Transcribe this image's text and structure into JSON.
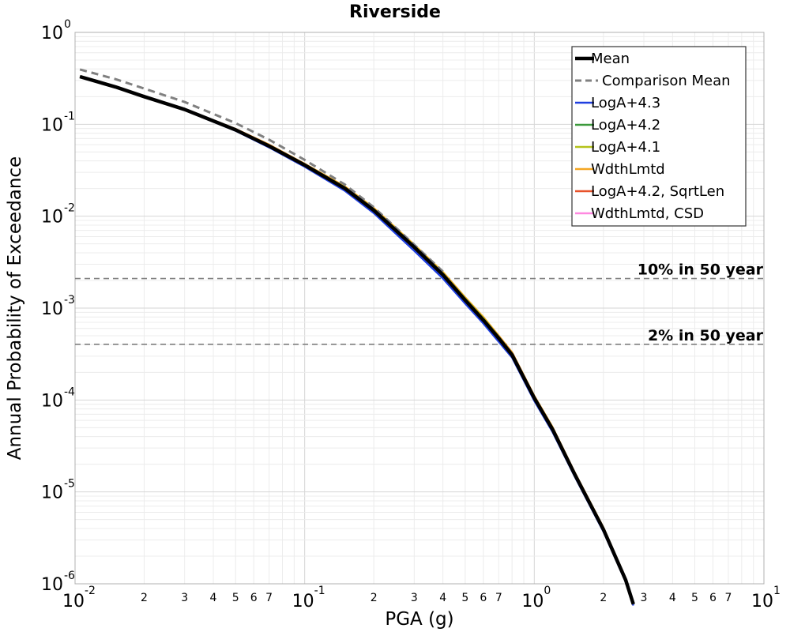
{
  "chart_data": {
    "type": "line",
    "title": "Riverside",
    "xlabel": "PGA (g)",
    "ylabel": "Annual Probability of Exceedance",
    "x_scale": "log",
    "y_scale": "log",
    "xlim": [
      0.01,
      10
    ],
    "ylim": [
      1e-06,
      1
    ],
    "grid": true,
    "legend_position": "top-right",
    "x_major_ticks": [
      {
        "base": "10",
        "exp": "-2"
      },
      {
        "base": "10",
        "exp": "-1"
      },
      {
        "base": "10",
        "exp": "0"
      },
      {
        "base": "10",
        "exp": "1"
      }
    ],
    "y_major_ticks": [
      {
        "base": "10",
        "exp": "0"
      },
      {
        "base": "10",
        "exp": "-1"
      },
      {
        "base": "10",
        "exp": "-2"
      },
      {
        "base": "10",
        "exp": "-3"
      },
      {
        "base": "10",
        "exp": "-4"
      },
      {
        "base": "10",
        "exp": "-5"
      },
      {
        "base": "10",
        "exp": "-6"
      }
    ],
    "x_minor_tick_labels": [
      "2",
      "3",
      "4",
      "5",
      "6",
      "7"
    ],
    "reference_lines": [
      {
        "label": "10% in 50 year",
        "y": 0.0021,
        "color": "#808080"
      },
      {
        "label": "2% in 50 year",
        "y": 0.000404,
        "color": "#808080"
      }
    ],
    "series": [
      {
        "name": "Mean",
        "color": "#000000",
        "style": "solid-thick",
        "x": [
          0.0105,
          0.015,
          0.02,
          0.03,
          0.05,
          0.07,
          0.1,
          0.15,
          0.2,
          0.3,
          0.4,
          0.5,
          0.6,
          0.7,
          0.8,
          1.0,
          1.2,
          1.5,
          2.0,
          2.5,
          2.7
        ],
        "y": [
          0.33,
          0.255,
          0.2,
          0.145,
          0.087,
          0.058,
          0.036,
          0.02,
          0.0116,
          0.0046,
          0.0023,
          0.00122,
          0.00074,
          0.00047,
          0.00031,
          0.000105,
          4.8e-05,
          1.55e-05,
          3.9e-06,
          1.1e-06,
          6e-07
        ]
      },
      {
        "name": "Comparison Mean",
        "color": "#808080",
        "style": "dashed",
        "x": [
          0.0105,
          0.015,
          0.02,
          0.03,
          0.05,
          0.07,
          0.1,
          0.15,
          0.2,
          0.3,
          0.4
        ],
        "y": [
          0.395,
          0.31,
          0.245,
          0.175,
          0.103,
          0.068,
          0.041,
          0.022,
          0.0125,
          0.0049,
          0.0025
        ]
      },
      {
        "name": "LogA+4.3",
        "color": "#1f3fe0",
        "style": "solid",
        "x": [
          0.0105,
          0.015,
          0.02,
          0.03,
          0.05,
          0.07,
          0.1,
          0.15,
          0.2,
          0.3,
          0.4,
          0.5,
          0.6,
          0.7,
          0.8,
          1.0,
          1.2,
          1.5,
          2.0,
          2.5,
          2.7
        ],
        "y": [
          0.33,
          0.254,
          0.199,
          0.143,
          0.085,
          0.056,
          0.0345,
          0.0188,
          0.0108,
          0.0042,
          0.0021,
          0.00112,
          0.00068,
          0.00043,
          0.00029,
          9.8e-05,
          4.5e-05,
          1.47e-05,
          3.7e-06,
          1.05e-06,
          5.8e-07
        ]
      },
      {
        "name": "LogA+4.2",
        "color": "#3c9a3c",
        "style": "solid",
        "x": [
          0.0105,
          0.015,
          0.02,
          0.03,
          0.05,
          0.07,
          0.1,
          0.15,
          0.2,
          0.3,
          0.4,
          0.5,
          0.6,
          0.7,
          0.8,
          1.0,
          1.2,
          1.5,
          2.0,
          2.5,
          2.7
        ],
        "y": [
          0.33,
          0.255,
          0.2,
          0.145,
          0.087,
          0.058,
          0.036,
          0.02,
          0.0116,
          0.0046,
          0.0023,
          0.00122,
          0.00074,
          0.00047,
          0.00031,
          0.000105,
          4.8e-05,
          1.55e-05,
          3.9e-06,
          1.1e-06,
          6e-07
        ]
      },
      {
        "name": "LogA+4.1",
        "color": "#b5c21a",
        "style": "solid",
        "x": [
          0.0105,
          0.015,
          0.02,
          0.03,
          0.05,
          0.07,
          0.1,
          0.15,
          0.2,
          0.3,
          0.4,
          0.5,
          0.6,
          0.7,
          0.8,
          1.0,
          1.2,
          1.5,
          2.0,
          2.5,
          2.7
        ],
        "y": [
          0.331,
          0.256,
          0.201,
          0.146,
          0.088,
          0.059,
          0.0368,
          0.0206,
          0.012,
          0.0048,
          0.0024,
          0.00128,
          0.00078,
          0.00049,
          0.00032,
          0.000108,
          5e-05,
          1.6e-05,
          4e-06,
          1.13e-06,
          6.2e-07
        ]
      },
      {
        "name": "WdthLmtd",
        "color": "#f5a623",
        "style": "solid",
        "x": [
          0.0105,
          0.015,
          0.02,
          0.03,
          0.05,
          0.07,
          0.1,
          0.15,
          0.2,
          0.3,
          0.4,
          0.5,
          0.6,
          0.7,
          0.8,
          1.0,
          1.2,
          1.5,
          2.0,
          2.5,
          2.7
        ],
        "y": [
          0.332,
          0.257,
          0.202,
          0.147,
          0.089,
          0.06,
          0.0372,
          0.021,
          0.0123,
          0.0049,
          0.00247,
          0.00131,
          0.0008,
          0.0005,
          0.00033,
          0.000111,
          5.1e-05,
          1.63e-05,
          4.1e-06,
          1.15e-06,
          6.3e-07
        ]
      },
      {
        "name": "LogA+4.2, SqrtLen",
        "color": "#e8522a",
        "style": "solid",
        "x": [
          0.0105,
          0.015,
          0.02,
          0.03,
          0.05,
          0.07,
          0.1,
          0.15,
          0.2,
          0.3,
          0.4,
          0.5,
          0.6,
          0.7,
          0.8,
          1.0,
          1.2,
          1.5,
          2.0,
          2.5,
          2.7
        ],
        "y": [
          0.332,
          0.257,
          0.202,
          0.147,
          0.089,
          0.06,
          0.0371,
          0.0209,
          0.0122,
          0.00488,
          0.00245,
          0.0013,
          0.00079,
          0.0005,
          0.00033,
          0.00011,
          5e-05,
          1.62e-05,
          4e-06,
          1.14e-06,
          6.2e-07
        ]
      },
      {
        "name": "WdthLmtd, CSD",
        "color": "#ff88e0",
        "style": "solid",
        "x": [
          0.0105,
          0.015,
          0.02,
          0.03,
          0.05,
          0.07,
          0.1,
          0.15,
          0.2,
          0.3,
          0.4,
          0.5,
          0.6,
          0.7,
          0.8,
          1.0,
          1.2,
          1.5,
          2.0,
          2.5,
          2.7
        ],
        "y": [
          0.33,
          0.255,
          0.2,
          0.145,
          0.087,
          0.058,
          0.036,
          0.02,
          0.0116,
          0.0046,
          0.0023,
          0.00122,
          0.00074,
          0.00047,
          0.00031,
          0.000105,
          4.8e-05,
          1.55e-05,
          3.9e-06,
          1.1e-06,
          6e-07
        ]
      }
    ]
  }
}
